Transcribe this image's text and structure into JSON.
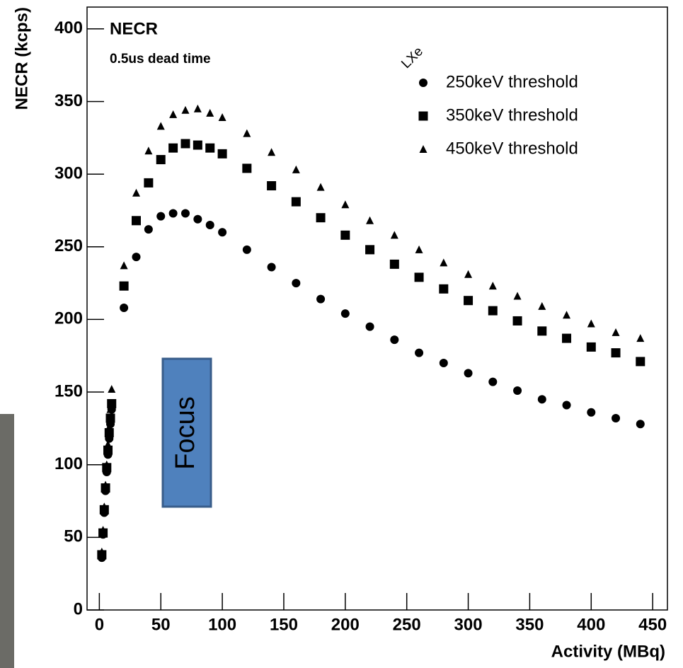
{
  "chart_data": {
    "type": "scatter",
    "title": "NECR",
    "subtitle": "0.5us dead time",
    "x_label": "Activity (MBq)",
    "y_label": "NECR (kcps)",
    "legend_title": "LXe",
    "annotation": "Focus",
    "x": [
      2,
      3,
      4,
      5,
      6,
      7,
      8,
      9,
      10,
      20,
      30,
      40,
      50,
      60,
      70,
      80,
      90,
      100,
      120,
      140,
      160,
      180,
      200,
      220,
      240,
      260,
      280,
      300,
      320,
      340,
      360,
      380,
      400,
      420,
      440
    ],
    "series": [
      {
        "name": "250keV threshold",
        "color": "#000000",
        "marker": "circle",
        "values": [
          36,
          52,
          67,
          82,
          95,
          107,
          118,
          128,
          138,
          208,
          243,
          262,
          271,
          273,
          273,
          269,
          265,
          260,
          248,
          236,
          225,
          214,
          204,
          195,
          186,
          177,
          170,
          163,
          157,
          151,
          145,
          141,
          136,
          132,
          128
        ]
      },
      {
        "name": "350keV threshold",
        "color": "#000000",
        "marker": "square",
        "values": [
          38,
          53,
          69,
          84,
          98,
          110,
          122,
          132,
          142,
          223,
          268,
          294,
          310,
          318,
          321,
          320,
          318,
          314,
          304,
          292,
          281,
          270,
          258,
          248,
          238,
          229,
          221,
          213,
          206,
          199,
          192,
          187,
          181,
          177,
          171
        ]
      },
      {
        "name": "450keV threshold",
        "color": "#000000",
        "marker": "triangle",
        "values": [
          40,
          55,
          71,
          86,
          100,
          114,
          126,
          138,
          152,
          237,
          287,
          316,
          333,
          341,
          344,
          345,
          342,
          339,
          328,
          315,
          303,
          291,
          279,
          268,
          258,
          248,
          239,
          231,
          223,
          216,
          209,
          203,
          197,
          191,
          187
        ]
      }
    ],
    "xlim": [
      -10,
      462
    ],
    "ylim": [
      0,
      415
    ],
    "xticks": [
      0,
      50,
      100,
      150,
      200,
      250,
      300,
      350,
      400,
      450
    ],
    "yticks": [
      0,
      50,
      100,
      150,
      200,
      250,
      300,
      350,
      400
    ],
    "grid": false
  }
}
